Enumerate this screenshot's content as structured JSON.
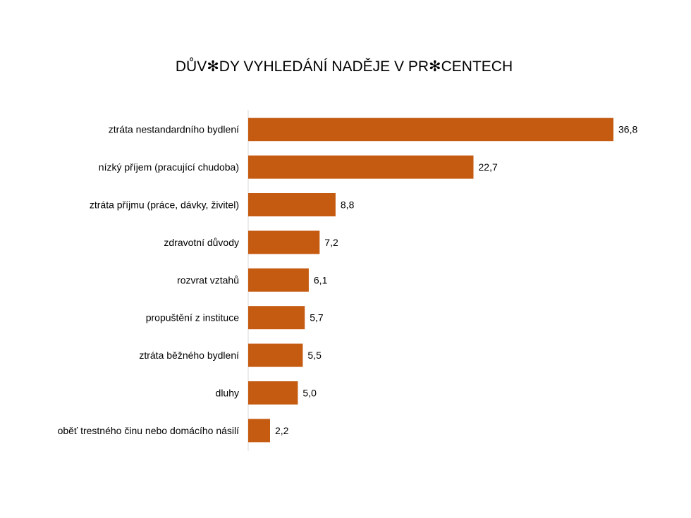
{
  "chart_data": {
    "type": "bar",
    "orientation": "horizontal",
    "title": "DŮV✻DY VYHLEDÁNÍ NADĚJE V PR✻CENTECH",
    "categories": [
      "ztráta nestandardního bydlení",
      "nízký příjem (pracující chudoba)",
      "ztráta příjmu (práce, dávky, živitel)",
      "zdravotní důvody",
      "rozvrat vztahů",
      "propuštění z instituce",
      "ztráta běžného bydlení",
      "dluhy",
      "oběť trestného činu nebo domácího násilí"
    ],
    "values": [
      36.8,
      22.7,
      8.8,
      7.2,
      6.1,
      5.7,
      5.5,
      5.0,
      2.2
    ],
    "value_labels": [
      "36,8",
      "22,7",
      "8,8",
      "7,2",
      "6,1",
      "5,7",
      "5,5",
      "5,0",
      "2,2"
    ],
    "xlim": [
      0,
      36.8
    ],
    "grid": false,
    "legend": "none",
    "bar_color": "#c55a11",
    "axis_color": "#d9d9d9"
  }
}
